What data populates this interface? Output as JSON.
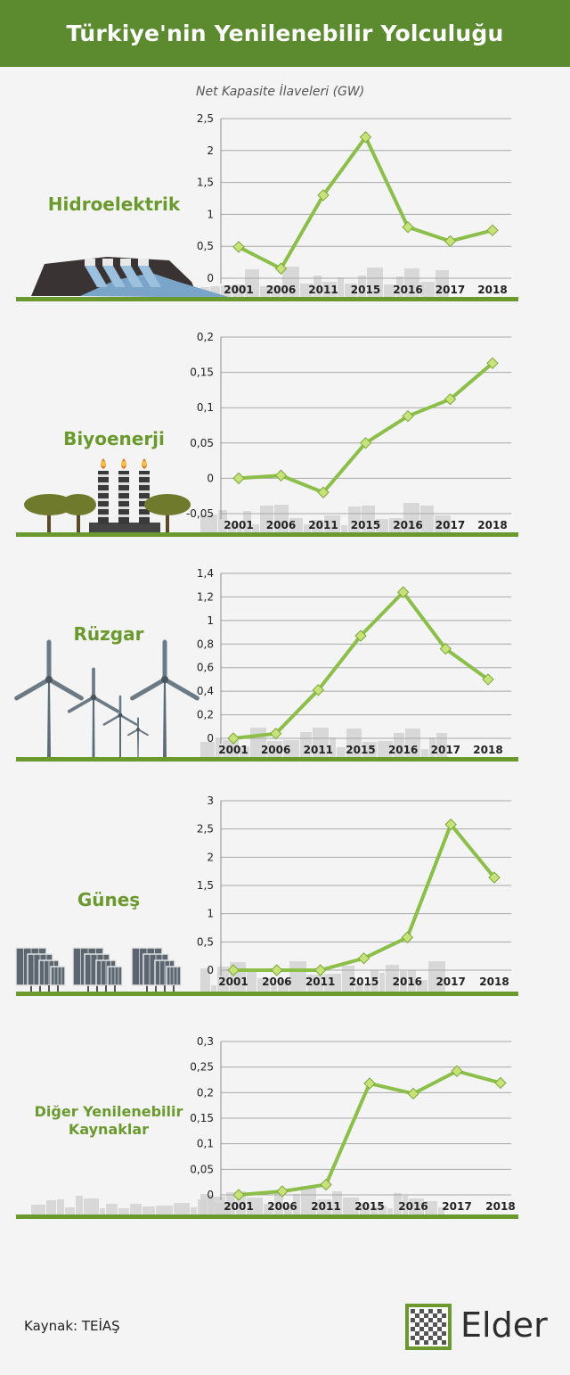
{
  "header": {
    "title": "Türkiye'nin Yenilenebilir Yolculuğu"
  },
  "subtitle": "Net Kapasite İlaveleri (GW)",
  "colors": {
    "header_bg": "#5c8a2f",
    "line": "#8cbf4a",
    "label": "#6a9a2e",
    "marker": "#c8e27a",
    "ground": "#6a9a2e",
    "skyline": "#d2d2d2"
  },
  "sections": [
    {
      "label": "Hidroelektrik",
      "icon": "dam-icon"
    },
    {
      "label": "Biyoenerji",
      "icon": "power-plant-icon"
    },
    {
      "label": "Rüzgar",
      "icon": "wind-turbine-icon"
    },
    {
      "label": "Güneş",
      "icon": "solar-panel-icon"
    },
    {
      "label": "Diğer Yenilenebilir Kaynaklar",
      "label_lines": [
        "Diğer Yenilenebilir",
        "Kaynaklar"
      ],
      "icon": "city-skyline-icon"
    }
  ],
  "chart_data": [
    {
      "type": "line",
      "title": "Hidroelektrik",
      "categories": [
        "2001",
        "2006",
        "2011",
        "2015",
        "2016",
        "2017",
        "2018"
      ],
      "values": [
        0.49,
        0.15,
        1.3,
        2.21,
        0.8,
        0.58,
        0.75
      ],
      "yticks": [
        "2,5",
        "2",
        "1,5",
        "1",
        "0,5",
        "0"
      ],
      "ylim": [
        0,
        2.5
      ],
      "grid": true
    },
    {
      "type": "line",
      "title": "Biyoenerji",
      "categories": [
        "2001",
        "2006",
        "2011",
        "2015",
        "2016",
        "2017",
        "2018"
      ],
      "values": [
        0.0,
        0.004,
        -0.02,
        0.05,
        0.088,
        0.112,
        0.163
      ],
      "yticks": [
        "0,2",
        "0,15",
        "0,1",
        "0,05",
        "0",
        "-0,05"
      ],
      "ylim": [
        -0.05,
        0.2
      ],
      "grid": true
    },
    {
      "type": "line",
      "title": "Rüzgar",
      "categories": [
        "2001",
        "2006",
        "2011",
        "2015",
        "2016",
        "2017",
        "2018"
      ],
      "values": [
        0.0,
        0.04,
        0.41,
        0.87,
        1.24,
        0.76,
        0.5
      ],
      "yticks": [
        "1,4",
        "1,2",
        "1",
        "0,8",
        "0,6",
        "0,4",
        "0,2",
        "0"
      ],
      "ylim": [
        0,
        1.4
      ],
      "grid": true
    },
    {
      "type": "line",
      "title": "Güneş",
      "categories": [
        "2001",
        "2006",
        "2011",
        "2015",
        "2016",
        "2017",
        "2018"
      ],
      "values": [
        0.0,
        0.0,
        0.0,
        0.21,
        0.58,
        2.58,
        1.64
      ],
      "yticks": [
        "3",
        "2,5",
        "2",
        "1,5",
        "1",
        "0,5",
        "0"
      ],
      "ylim": [
        0,
        3
      ],
      "grid": true
    },
    {
      "type": "line",
      "title": "Diğer Yenilenebilir Kaynaklar",
      "categories": [
        "2001",
        "2006",
        "2011",
        "2015",
        "2016",
        "2017",
        "2018"
      ],
      "values": [
        0.0,
        0.007,
        0.02,
        0.218,
        0.198,
        0.242,
        0.219
      ],
      "yticks": [
        "0,3",
        "0,25",
        "0,2",
        "0,15",
        "0,1",
        "0,05",
        "0"
      ],
      "ylim": [
        0,
        0.3
      ],
      "grid": true
    }
  ],
  "footer": {
    "source": "Kaynak: TEİAŞ",
    "logo_text": "Elder"
  }
}
